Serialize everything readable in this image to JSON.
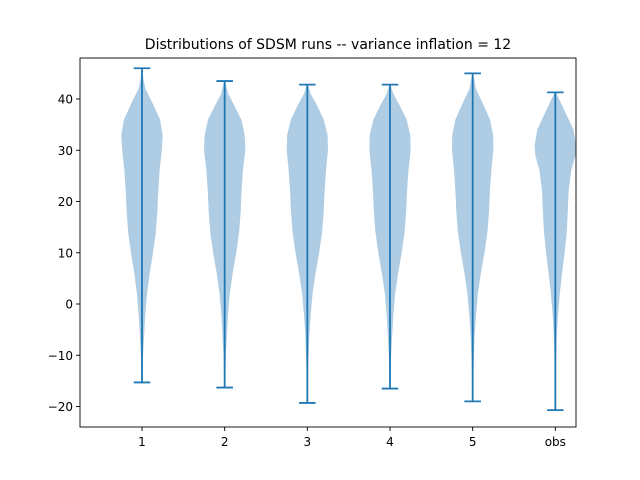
{
  "chart_data": {
    "type": "violin",
    "title": "Distributions of SDSM runs -- variance inflation = 12",
    "xlabel": "",
    "ylabel": "",
    "categories": [
      "1",
      "2",
      "3",
      "4",
      "5",
      "obs"
    ],
    "ylim": [
      -24,
      48
    ],
    "yticks": [
      -20,
      -10,
      0,
      10,
      20,
      30,
      40
    ],
    "grid": false,
    "colors": {
      "body": "#aecde4",
      "line": "#1f77b4",
      "axes": "#000000"
    },
    "violins": [
      {
        "label": "1",
        "min": -15.3,
        "max": 46.0,
        "profile": [
          [
            -15.3,
            0.2
          ],
          [
            -10,
            0.5
          ],
          [
            -6,
            1.0
          ],
          [
            -2,
            1.5
          ],
          [
            2,
            2.3
          ],
          [
            6,
            3.5
          ],
          [
            10,
            5.0
          ],
          [
            14,
            6.3
          ],
          [
            18,
            7.0
          ],
          [
            22,
            7.4
          ],
          [
            26,
            8.0
          ],
          [
            30,
            9.0
          ],
          [
            33,
            9.4
          ],
          [
            36,
            8.2
          ],
          [
            39,
            5.0
          ],
          [
            42,
            1.6
          ],
          [
            44,
            0.6
          ],
          [
            46,
            0.2
          ]
        ]
      },
      {
        "label": "2",
        "min": -16.3,
        "max": 43.5,
        "profile": [
          [
            -16.3,
            0.2
          ],
          [
            -10,
            0.5
          ],
          [
            -6,
            1.0
          ],
          [
            -2,
            1.5
          ],
          [
            2,
            2.3
          ],
          [
            6,
            3.6
          ],
          [
            10,
            5.2
          ],
          [
            14,
            6.5
          ],
          [
            18,
            7.2
          ],
          [
            22,
            7.6
          ],
          [
            26,
            8.2
          ],
          [
            30,
            9.3
          ],
          [
            33,
            9.0
          ],
          [
            36,
            7.5
          ],
          [
            39,
            4.0
          ],
          [
            41,
            1.6
          ],
          [
            43.5,
            0.2
          ]
        ]
      },
      {
        "label": "3",
        "min": -19.3,
        "max": 42.8,
        "profile": [
          [
            -19.3,
            0.2
          ],
          [
            -12,
            0.4
          ],
          [
            -6,
            0.9
          ],
          [
            -2,
            1.5
          ],
          [
            2,
            2.3
          ],
          [
            6,
            3.6
          ],
          [
            10,
            5.2
          ],
          [
            14,
            6.5
          ],
          [
            18,
            7.2
          ],
          [
            22,
            7.6
          ],
          [
            26,
            8.2
          ],
          [
            30,
            9.1
          ],
          [
            33,
            8.9
          ],
          [
            36,
            7.2
          ],
          [
            39,
            4.0
          ],
          [
            41,
            1.5
          ],
          [
            42.8,
            0.2
          ]
        ]
      },
      {
        "label": "4",
        "min": -16.5,
        "max": 42.8,
        "profile": [
          [
            -16.5,
            0.2
          ],
          [
            -10,
            0.5
          ],
          [
            -6,
            1.0
          ],
          [
            -2,
            1.5
          ],
          [
            2,
            2.3
          ],
          [
            6,
            3.6
          ],
          [
            10,
            5.2
          ],
          [
            14,
            6.5
          ],
          [
            18,
            7.2
          ],
          [
            22,
            7.6
          ],
          [
            26,
            8.2
          ],
          [
            30,
            9.2
          ],
          [
            33,
            9.0
          ],
          [
            36,
            7.4
          ],
          [
            39,
            4.0
          ],
          [
            41,
            1.5
          ],
          [
            42.8,
            0.2
          ]
        ]
      },
      {
        "label": "5",
        "min": -19.0,
        "max": 45.0,
        "profile": [
          [
            -19,
            0.2
          ],
          [
            -12,
            0.4
          ],
          [
            -6,
            0.9
          ],
          [
            -2,
            1.5
          ],
          [
            2,
            2.3
          ],
          [
            6,
            3.6
          ],
          [
            10,
            5.2
          ],
          [
            14,
            6.5
          ],
          [
            18,
            7.2
          ],
          [
            22,
            7.6
          ],
          [
            26,
            8.2
          ],
          [
            30,
            9.1
          ],
          [
            33,
            9.0
          ],
          [
            36,
            7.6
          ],
          [
            39,
            4.6
          ],
          [
            42,
            1.4
          ],
          [
            45,
            0.2
          ]
        ]
      },
      {
        "label": "obs",
        "min": -20.7,
        "max": 41.3,
        "profile": [
          [
            -20.7,
            0.2
          ],
          [
            -12,
            0.3
          ],
          [
            -6,
            0.7
          ],
          [
            -2,
            1.3
          ],
          [
            2,
            2.1
          ],
          [
            6,
            3.2
          ],
          [
            10,
            4.4
          ],
          [
            14,
            5.4
          ],
          [
            18,
            5.9
          ],
          [
            22,
            6.3
          ],
          [
            26,
            7.5
          ],
          [
            29,
            9.5
          ],
          [
            31,
            9.8
          ],
          [
            34,
            8.6
          ],
          [
            37,
            5.2
          ],
          [
            40,
            1.8
          ],
          [
            41.3,
            0.2
          ]
        ]
      }
    ]
  }
}
